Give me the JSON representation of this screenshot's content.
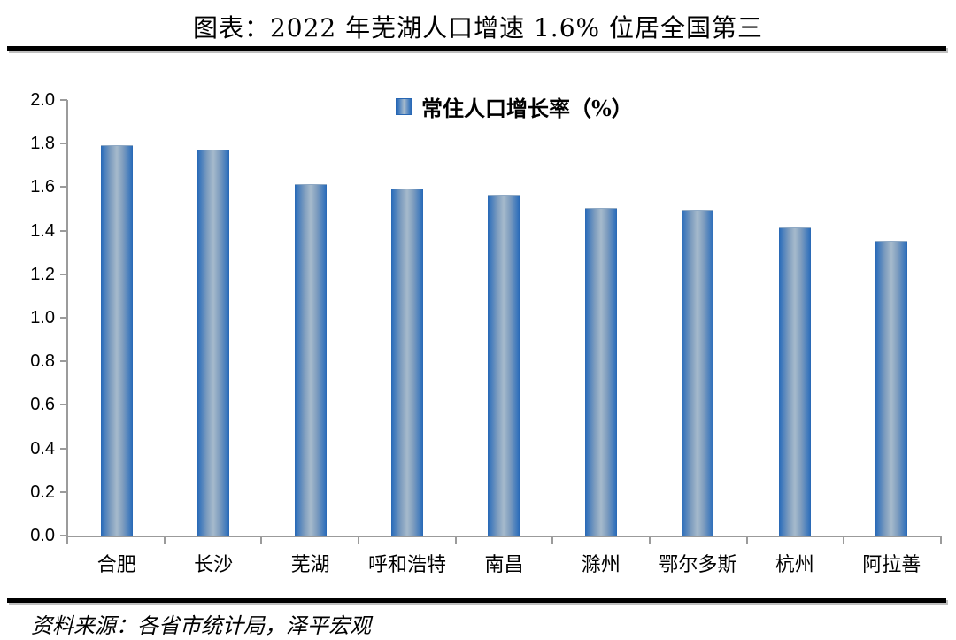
{
  "title": "图表：2022 年芜湖人口增速 1.6% 位居全国第三",
  "legend_label": "常住人口增长率（%）",
  "source": "资料来源：各省市统计局，泽平宏观",
  "colors": {
    "bar_edge": "#2766B3",
    "bar_center": "#A6BACC",
    "axis": "#9B9B9B",
    "rule": "#000000",
    "text": "#000000"
  },
  "chart_data": {
    "type": "bar",
    "title": "图表：2022 年芜湖人口增速 1.6% 位居全国第三",
    "legend": [
      "常住人口增长率（%）"
    ],
    "legend_position": "top-center",
    "categories": [
      "合肥",
      "长沙",
      "芜湖",
      "呼和浩特",
      "南昌",
      "滁州",
      "鄂尔多斯",
      "杭州",
      "阿拉善"
    ],
    "values": [
      1.79,
      1.77,
      1.61,
      1.59,
      1.56,
      1.5,
      1.49,
      1.41,
      1.35
    ],
    "xlabel": "",
    "ylabel": "",
    "ylim": [
      0.0,
      2.0
    ],
    "ytick_step": 0.2,
    "yticks": [
      "2.0",
      "1.8",
      "1.6",
      "1.4",
      "1.2",
      "1.0",
      "0.8",
      "0.6",
      "0.4",
      "0.2",
      "0.0"
    ],
    "grid": false,
    "source_note": "资料来源：各省市统计局，泽平宏观"
  }
}
